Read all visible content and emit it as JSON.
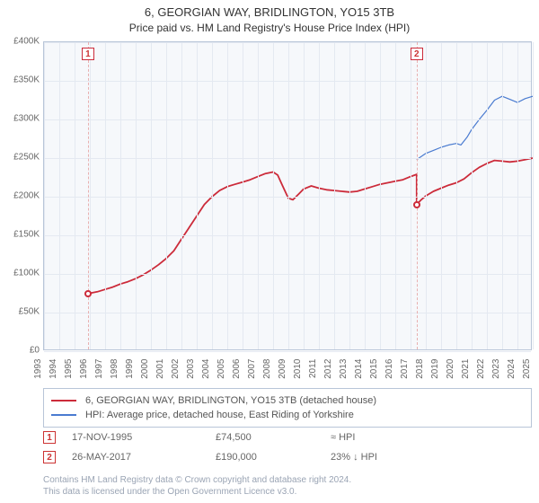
{
  "titles": {
    "line1": "6, GEORGIAN WAY, BRIDLINGTON, YO15 3TB",
    "line2": "Price paid vs. HM Land Registry's House Price Index (HPI)"
  },
  "plot": {
    "background_color": "#f6f8fb",
    "grid_color": "#e4e9f1",
    "border_color": "#b8c5d8",
    "x_axis": {
      "min_year": 1993,
      "max_year": 2025,
      "ticks": [
        1993,
        1994,
        1995,
        1996,
        1997,
        1998,
        1999,
        2000,
        2001,
        2002,
        2003,
        2004,
        2005,
        2006,
        2007,
        2008,
        2009,
        2010,
        2011,
        2012,
        2013,
        2014,
        2015,
        2016,
        2017,
        2018,
        2019,
        2020,
        2021,
        2022,
        2023,
        2024,
        2025
      ]
    },
    "y_axis": {
      "min": 0,
      "max": 400000,
      "tick_step": 50000,
      "tick_labels": [
        "£0",
        "£50K",
        "£100K",
        "£150K",
        "£200K",
        "£250K",
        "£300K",
        "£350K",
        "£400K"
      ]
    },
    "series": [
      {
        "id": "property",
        "label": "6, GEORGIAN WAY, BRIDLINGTON, YO15 3TB (detached house)",
        "color": "#cc2b3a",
        "width": 1.8,
        "points": [
          [
            1995.88,
            74500
          ],
          [
            1996.5,
            77000
          ],
          [
            1997.0,
            80000
          ],
          [
            1997.5,
            83000
          ],
          [
            1998.0,
            87000
          ],
          [
            1998.5,
            90000
          ],
          [
            1999.0,
            94000
          ],
          [
            1999.5,
            99000
          ],
          [
            2000.0,
            105000
          ],
          [
            2000.5,
            112000
          ],
          [
            2001.0,
            120000
          ],
          [
            2001.5,
            130000
          ],
          [
            2002.0,
            145000
          ],
          [
            2002.5,
            160000
          ],
          [
            2003.0,
            175000
          ],
          [
            2003.5,
            190000
          ],
          [
            2004.0,
            200000
          ],
          [
            2004.5,
            208000
          ],
          [
            2005.0,
            213000
          ],
          [
            2005.5,
            216000
          ],
          [
            2006.0,
            219000
          ],
          [
            2006.5,
            222000
          ],
          [
            2007.0,
            226000
          ],
          [
            2007.5,
            230000
          ],
          [
            2008.0,
            232000
          ],
          [
            2008.3,
            228000
          ],
          [
            2008.6,
            215000
          ],
          [
            2009.0,
            198000
          ],
          [
            2009.3,
            196000
          ],
          [
            2009.7,
            204000
          ],
          [
            2010.0,
            210000
          ],
          [
            2010.5,
            214000
          ],
          [
            2011.0,
            211000
          ],
          [
            2011.5,
            209000
          ],
          [
            2012.0,
            208000
          ],
          [
            2012.5,
            207000
          ],
          [
            2013.0,
            206000
          ],
          [
            2013.5,
            207000
          ],
          [
            2014.0,
            210000
          ],
          [
            2014.5,
            213000
          ],
          [
            2015.0,
            216000
          ],
          [
            2015.5,
            218000
          ],
          [
            2016.0,
            220000
          ],
          [
            2016.5,
            222000
          ],
          [
            2017.0,
            226000
          ],
          [
            2017.4,
            229000
          ],
          [
            2017.4,
            190000
          ],
          [
            2017.7,
            196000
          ],
          [
            2018.0,
            201000
          ],
          [
            2018.5,
            207000
          ],
          [
            2019.0,
            211000
          ],
          [
            2019.5,
            215000
          ],
          [
            2020.0,
            218000
          ],
          [
            2020.5,
            223000
          ],
          [
            2021.0,
            231000
          ],
          [
            2021.5,
            238000
          ],
          [
            2022.0,
            243000
          ],
          [
            2022.5,
            247000
          ],
          [
            2023.0,
            246000
          ],
          [
            2023.5,
            245000
          ],
          [
            2024.0,
            246000
          ],
          [
            2024.5,
            248000
          ],
          [
            2025.0,
            250000
          ]
        ]
      },
      {
        "id": "hpi",
        "label": "HPI: Average price, detached house, East Riding of Yorkshire",
        "color": "#4a7bd0",
        "width": 1.2,
        "points": [
          [
            2017.4,
            248000
          ],
          [
            2017.7,
            252000
          ],
          [
            2018.0,
            256000
          ],
          [
            2018.5,
            260000
          ],
          [
            2019.0,
            264000
          ],
          [
            2019.5,
            267000
          ],
          [
            2020.0,
            269000
          ],
          [
            2020.3,
            267000
          ],
          [
            2020.7,
            277000
          ],
          [
            2021.0,
            287000
          ],
          [
            2021.5,
            300000
          ],
          [
            2022.0,
            312000
          ],
          [
            2022.5,
            325000
          ],
          [
            2023.0,
            330000
          ],
          [
            2023.5,
            326000
          ],
          [
            2024.0,
            322000
          ],
          [
            2024.5,
            327000
          ],
          [
            2025.0,
            330000
          ]
        ]
      }
    ],
    "events": [
      {
        "n": "1",
        "year": 1995.88,
        "price": 74500,
        "line_color": "#e8b0b0"
      },
      {
        "n": "2",
        "year": 2017.4,
        "price": 190000,
        "line_color": "#e8b0b0"
      }
    ],
    "event_badge_border": "#cc2b3a",
    "event_point_color": "#cc2b3a"
  },
  "legend": {
    "border_color": "#b8c5d8",
    "items": [
      {
        "color": "#cc2b3a",
        "label_ref": "plot.series.0.label"
      },
      {
        "color": "#4a7bd0",
        "label_ref": "plot.series.1.label"
      }
    ]
  },
  "sales": [
    {
      "n": "1",
      "date": "17-NOV-1995",
      "price": "£74,500",
      "delta": "≈ HPI"
    },
    {
      "n": "2",
      "date": "26-MAY-2017",
      "price": "£190,000",
      "delta": "23% ↓ HPI"
    }
  ],
  "footer": {
    "line1": "Contains HM Land Registry data © Crown copyright and database right 2024.",
    "line2": "This data is licensed under the Open Government Licence v3.0."
  }
}
